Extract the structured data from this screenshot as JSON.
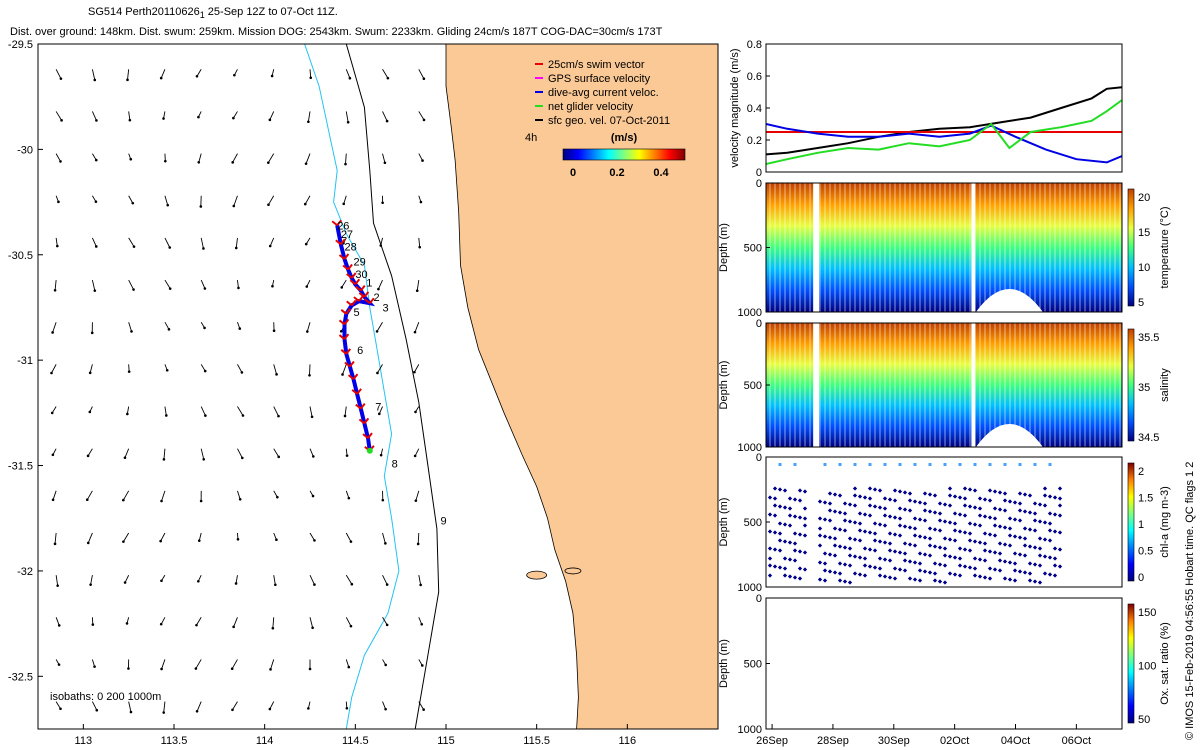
{
  "header": {
    "title_line1": "SG514 Perth20110626",
    "title_tick": "1",
    "title_line1b": " 25-Sep 12Z to 07-Oct 11Z.",
    "title_line2": "Dist. over ground: 148km. Dist. swum: 259km. Mission DOG: 2543km. Swum: 2233km. Gliding 24cm/s 187T COG-DAC=30cm/s 173T"
  },
  "footer": {
    "note": "© IMOS 15-Feb-2019 04:56:55 Hobart time. QC flags 1  2"
  },
  "colors": {
    "land": "#fbc995",
    "ocean": "#ffffff",
    "isobath_200": "#22c3f0",
    "isobath_0": "#000000",
    "swim": "#e60000",
    "gps": "#ff00ff",
    "dac": "#0000e6",
    "net": "#22dd22",
    "sfc": "#000000"
  },
  "chart_data": [
    {
      "type": "scatter",
      "subtype": "map",
      "xlim": [
        112.75,
        116.5
      ],
      "ylim": [
        -32.75,
        -29.5
      ],
      "x_ticks": [
        "113",
        "113.5",
        "114",
        "114.5",
        "115",
        "115.5",
        "116"
      ],
      "y_ticks": [
        "-29.5",
        "-30",
        "-30.5",
        "-31",
        "-31.5",
        "-32",
        "-32.5"
      ],
      "legend": {
        "placement": "top-right",
        "entries": [
          "25cm/s swim vector",
          "GPS surface velocity",
          "dive-avg current veloc.",
          "net glider velocity",
          "sfc geo. vel. 07-Oct-2011"
        ],
        "scale_label": "4h",
        "colorbar_title": "(m/s)",
        "colorbar_ticks": [
          "0",
          "0.2",
          "0.4"
        ]
      },
      "isobath_note": "isobaths: 0   200  1000m",
      "track": [
        [
          114.4,
          -30.36
        ],
        [
          114.42,
          -30.45
        ],
        [
          114.44,
          -30.52
        ],
        [
          114.46,
          -30.57
        ],
        [
          114.48,
          -30.61
        ],
        [
          114.5,
          -30.64
        ],
        [
          114.53,
          -30.67
        ],
        [
          114.55,
          -30.7
        ],
        [
          114.58,
          -30.73
        ],
        [
          114.52,
          -30.72
        ],
        [
          114.48,
          -30.74
        ],
        [
          114.45,
          -30.78
        ],
        [
          114.44,
          -30.83
        ],
        [
          114.44,
          -30.9
        ],
        [
          114.45,
          -30.97
        ],
        [
          114.47,
          -31.03
        ],
        [
          114.49,
          -31.09
        ],
        [
          114.51,
          -31.16
        ],
        [
          114.53,
          -31.23
        ],
        [
          114.55,
          -31.3
        ],
        [
          114.57,
          -31.37
        ],
        [
          114.58,
          -31.43
        ]
      ],
      "day_labels": [
        {
          "label": "26",
          "lon": 114.4,
          "lat": -30.38
        },
        {
          "label": "27",
          "lon": 114.42,
          "lat": -30.42
        },
        {
          "label": "28",
          "lon": 114.44,
          "lat": -30.48
        },
        {
          "label": "29",
          "lon": 114.49,
          "lat": -30.55
        },
        {
          "label": "30",
          "lon": 114.5,
          "lat": -30.61
        },
        {
          "label": "1",
          "lon": 114.56,
          "lat": -30.65
        },
        {
          "label": "2",
          "lon": 114.6,
          "lat": -30.72
        },
        {
          "label": "3",
          "lon": 114.65,
          "lat": -30.77
        },
        {
          "label": "5",
          "lon": 114.49,
          "lat": -30.79
        },
        {
          "label": "6",
          "lon": 114.51,
          "lat": -30.97
        },
        {
          "label": "7",
          "lon": 114.61,
          "lat": -31.24
        },
        {
          "label": "8",
          "lon": 114.7,
          "lat": -31.51
        },
        {
          "label": "9",
          "lon": 114.97,
          "lat": -31.78
        }
      ]
    },
    {
      "type": "line",
      "ylabel": "velocity magnitude (m/s)",
      "ylim": [
        0,
        0.8
      ],
      "y_ticks": [
        "0",
        "0.2",
        "0.4",
        "0.6",
        "0.8"
      ],
      "xlim": [
        25.8,
        37.5
      ],
      "series": [
        {
          "color": "#000000",
          "x": [
            25.8,
            26.5,
            27.5,
            28.5,
            29.5,
            30.5,
            31.5,
            32.5,
            33.5,
            34.5,
            35.5,
            36.5,
            37.0,
            37.5
          ],
          "y": [
            0.11,
            0.12,
            0.15,
            0.18,
            0.22,
            0.25,
            0.27,
            0.28,
            0.31,
            0.34,
            0.4,
            0.46,
            0.52,
            0.53
          ]
        },
        {
          "color": "#e60000",
          "x": [
            25.8,
            37.5
          ],
          "y": [
            0.25,
            0.25
          ]
        },
        {
          "color": "#0000e6",
          "x": [
            25.8,
            26.5,
            27.5,
            28.5,
            29.5,
            30.5,
            31.5,
            32.5,
            33.2,
            34.0,
            35.0,
            36.0,
            37.0,
            37.5
          ],
          "y": [
            0.3,
            0.27,
            0.24,
            0.22,
            0.22,
            0.24,
            0.22,
            0.24,
            0.29,
            0.22,
            0.14,
            0.08,
            0.06,
            0.1
          ]
        },
        {
          "color": "#22dd22",
          "x": [
            25.8,
            26.5,
            27.5,
            28.5,
            29.5,
            30.5,
            31.5,
            32.5,
            33.2,
            33.8,
            34.5,
            35.5,
            36.5,
            37.0,
            37.5
          ],
          "y": [
            0.05,
            0.08,
            0.12,
            0.15,
            0.14,
            0.18,
            0.16,
            0.2,
            0.3,
            0.15,
            0.25,
            0.28,
            0.32,
            0.38,
            0.45
          ]
        }
      ]
    },
    {
      "type": "heatmap",
      "variable": "temperature",
      "ylabel": "Depth (m)",
      "colorbar_label": "temperature (°C)",
      "colorbar_ticks": [
        "5",
        "10",
        "15",
        "20"
      ],
      "y_ticks": [
        "0",
        "500",
        "1000"
      ],
      "range": [
        3,
        22
      ]
    },
    {
      "type": "heatmap",
      "variable": "salinity",
      "ylabel": "Depth (m)",
      "colorbar_label": "salinity",
      "colorbar_ticks": [
        "34.5",
        "35",
        "35.5"
      ],
      "y_ticks": [
        "0",
        "500",
        "1000"
      ],
      "range": [
        34.3,
        35.8
      ]
    },
    {
      "type": "heatmap",
      "variable": "chlorophyll",
      "ylabel": "Depth (m)",
      "colorbar_label": "chl-a (mg m-3)",
      "colorbar_ticks": [
        "0",
        "0.5",
        "1",
        "1.5",
        "2"
      ],
      "y_ticks": [
        "0",
        "500",
        "1000"
      ],
      "range": [
        0,
        2
      ]
    },
    {
      "type": "heatmap",
      "variable": "oxygen",
      "ylabel": "Depth (m)",
      "colorbar_label": "Ox. sat. ratio (%)",
      "colorbar_ticks": [
        "50",
        "100",
        "150"
      ],
      "y_ticks": [
        "0",
        "500",
        "1000"
      ],
      "range": [
        20,
        170
      ],
      "values": []
    }
  ],
  "time_axis": {
    "ticks": [
      "26Sep",
      "28Sep",
      "30Sep",
      "02Oct",
      "04Oct",
      "06Oct"
    ]
  }
}
